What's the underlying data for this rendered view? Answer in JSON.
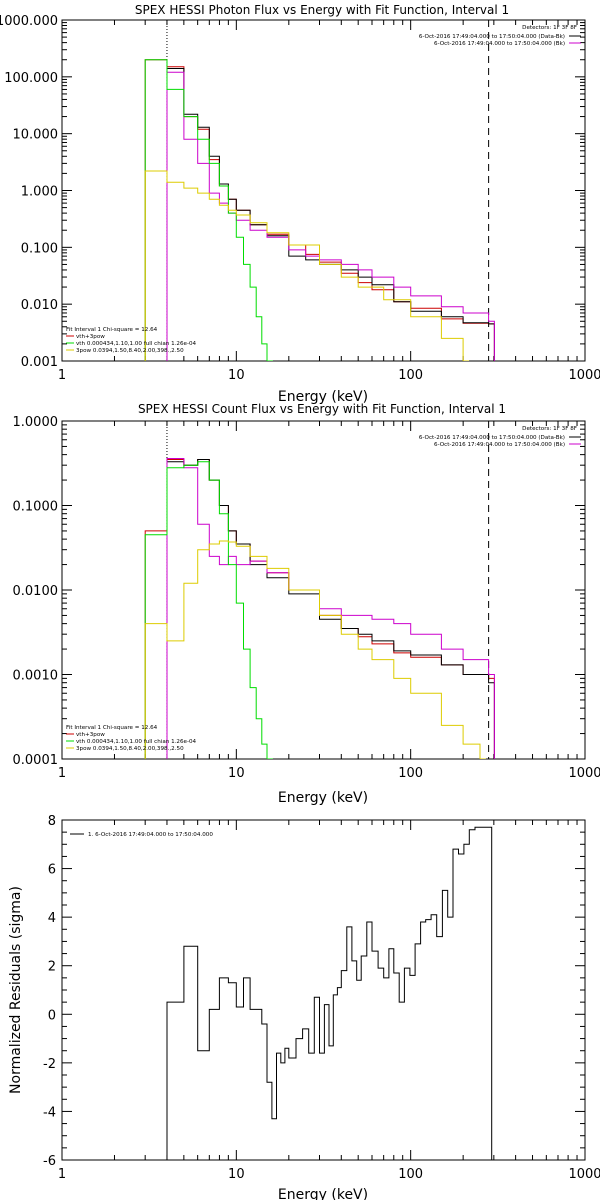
{
  "chart_data": [
    {
      "type": "line",
      "title": "SPEX HESSI Photon Flux vs Energy with Fit Function, Interval 1",
      "xlabel": "Energy (keV)",
      "ylabel": "",
      "x_scale": "log",
      "y_scale": "log",
      "xlim": [
        1,
        1000
      ],
      "ylim": [
        0.001,
        1000
      ],
      "x_tick_labels": [
        "1",
        "10",
        "100",
        "1000"
      ],
      "y_tick_labels": [
        "0.001",
        "0.010",
        "0.100",
        "1.000",
        "10.000",
        "100.000",
        "1000.000"
      ],
      "detectors_label": "Detectors: 1F 3F 8F",
      "legend_right": [
        "6-Oct-2016 17:49:04.000 to 17:50:04.000 (Data-Bk)",
        "6-Oct-2016 17:49:04.000 to 17:50:04.000 (Bk)"
      ],
      "legend_left": [
        "Fit Interval 1   Chi-square = 12.64",
        "vth+3pow",
        "vth 0.000434,1.10,1.00   full chian 1.26e-04",
        "3pow 0.0394,1.50,8.40,2.00,398.,2.50"
      ],
      "vlines": [
        {
          "x": 4.0,
          "style": "dotted"
        },
        {
          "x": 280,
          "style": "dashed"
        }
      ],
      "series": [
        {
          "name": "vth+3pow",
          "color": "#cc0000",
          "x": [
            3,
            4,
            5,
            6,
            7,
            8,
            9,
            10,
            12,
            15,
            20,
            25,
            30,
            40,
            50,
            60,
            80,
            100,
            150,
            200,
            280
          ],
          "values": [
            200,
            150,
            20,
            12,
            3.5,
            1.2,
            0.7,
            0.45,
            0.25,
            0.17,
            0.11,
            0.075,
            0.055,
            0.035,
            0.024,
            0.018,
            0.011,
            0.0085,
            0.0055,
            0.0046,
            0.0045
          ]
        },
        {
          "name": "",
          "color": "#000000",
          "x": [
            4,
            5,
            6,
            7,
            8,
            9,
            10,
            12,
            15,
            20,
            25,
            30,
            40,
            50,
            60,
            80,
            100,
            150,
            200,
            280
          ],
          "values": [
            140,
            22,
            13,
            4,
            1.3,
            0.7,
            0.45,
            0.25,
            0.16,
            0.07,
            0.06,
            0.05,
            0.04,
            0.03,
            0.022,
            0.011,
            0.0075,
            0.006,
            0.0047,
            0.0045
          ]
        },
        {
          "name": "",
          "color": "#cc00cc",
          "x": [
            4,
            5,
            6,
            7,
            8,
            9,
            10,
            12,
            15,
            20,
            25,
            30,
            40,
            50,
            60,
            80,
            100,
            150,
            200,
            280
          ],
          "values": [
            120,
            8,
            3,
            0.9,
            0.6,
            0.4,
            0.3,
            0.2,
            0.15,
            0.09,
            0.07,
            0.06,
            0.05,
            0.04,
            0.03,
            0.02,
            0.014,
            0.009,
            0.007,
            0.005
          ]
        },
        {
          "name": "vth",
          "color": "#00dd00",
          "x": [
            3,
            4,
            5,
            6,
            7,
            8,
            9,
            10,
            11,
            12,
            13,
            14,
            15
          ],
          "values": [
            200,
            60,
            20,
            8,
            3,
            1.2,
            0.4,
            0.15,
            0.05,
            0.02,
            0.006,
            0.002,
            0.001
          ]
        },
        {
          "name": "3pow",
          "color": "#ddcc00",
          "x": [
            3,
            4,
            5,
            6,
            7,
            8,
            9,
            10,
            12,
            15,
            20,
            30,
            40,
            50,
            70,
            100,
            150,
            200
          ],
          "values": [
            2.2,
            1.4,
            1.1,
            0.9,
            0.7,
            0.55,
            0.45,
            0.37,
            0.27,
            0.18,
            0.11,
            0.05,
            0.03,
            0.02,
            0.012,
            0.006,
            0.0025,
            0.001
          ]
        }
      ]
    },
    {
      "type": "line",
      "title": "SPEX HESSI Count Flux vs Energy with Fit Function, Interval 1",
      "xlabel": "Energy (keV)",
      "ylabel": "",
      "x_scale": "log",
      "y_scale": "log",
      "xlim": [
        1,
        1000
      ],
      "ylim": [
        0.0001,
        1
      ],
      "x_tick_labels": [
        "1",
        "10",
        "100",
        "1000"
      ],
      "y_tick_labels": [
        "0.0001",
        "0.0010",
        "0.0100",
        "0.1000",
        "1.0000"
      ],
      "detectors_label": "Detectors: 1F 3F 8F",
      "legend_right": [
        "6-Oct-2016 17:49:04.000 to 17:50:04.000 (Data-Bk)",
        "6-Oct-2016 17:49:04.000 to 17:50:04.000 (Bk)"
      ],
      "legend_left": [
        "Fit Interval 1   Chi-square = 12.64",
        "vth+3pow",
        "vth 0.000434,1.10,1.00   full chian 1.26e-04",
        "3pow 0.0394,1.50,8.40,2.00,398.,2.50"
      ],
      "vlines": [
        {
          "x": 4.0,
          "style": "dotted"
        },
        {
          "x": 280,
          "style": "dashed"
        }
      ],
      "series": [
        {
          "name": "vth+3pow",
          "color": "#cc0000",
          "x": [
            3,
            4,
            5,
            6,
            7,
            8,
            9,
            10,
            12,
            15,
            20,
            30,
            40,
            50,
            60,
            80,
            100,
            150,
            200,
            280
          ],
          "values": [
            0.05,
            0.35,
            0.3,
            0.35,
            0.2,
            0.1,
            0.05,
            0.035,
            0.022,
            0.016,
            0.01,
            0.005,
            0.0035,
            0.0028,
            0.0023,
            0.0018,
            0.0016,
            0.0013,
            0.001,
            0.0009
          ]
        },
        {
          "name": "",
          "color": "#000000",
          "x": [
            4,
            5,
            6,
            7,
            8,
            9,
            10,
            12,
            15,
            20,
            30,
            40,
            50,
            60,
            80,
            100,
            150,
            200,
            280
          ],
          "values": [
            0.33,
            0.3,
            0.35,
            0.2,
            0.1,
            0.05,
            0.035,
            0.02,
            0.014,
            0.009,
            0.0045,
            0.0035,
            0.003,
            0.0025,
            0.0019,
            0.0017,
            0.0013,
            0.001,
            0.0008
          ]
        },
        {
          "name": "",
          "color": "#cc00cc",
          "x": [
            4,
            5,
            6,
            7,
            8,
            9,
            10,
            12,
            15,
            20,
            30,
            40,
            50,
            60,
            80,
            100,
            150,
            200,
            280
          ],
          "values": [
            0.36,
            0.28,
            0.06,
            0.025,
            0.02,
            0.025,
            0.02,
            0.022,
            0.016,
            0.01,
            0.006,
            0.005,
            0.005,
            0.0045,
            0.004,
            0.003,
            0.002,
            0.0015,
            0.001
          ]
        },
        {
          "name": "vth",
          "color": "#00dd00",
          "x": [
            3,
            4,
            5,
            6,
            7,
            8,
            9,
            10,
            11,
            12,
            13,
            14,
            15
          ],
          "values": [
            0.045,
            0.28,
            0.3,
            0.33,
            0.2,
            0.08,
            0.02,
            0.007,
            0.002,
            0.0007,
            0.0003,
            0.00015,
            0.0001
          ]
        },
        {
          "name": "3pow",
          "color": "#ddcc00",
          "x": [
            3,
            4,
            5,
            6,
            7,
            8,
            9,
            10,
            12,
            15,
            20,
            30,
            40,
            50,
            60,
            80,
            100,
            150,
            200,
            250
          ],
          "values": [
            0.004,
            0.0025,
            0.012,
            0.03,
            0.035,
            0.038,
            0.037,
            0.033,
            0.025,
            0.018,
            0.01,
            0.005,
            0.003,
            0.002,
            0.0015,
            0.0009,
            0.0006,
            0.00025,
            0.00015,
            0.0001
          ]
        }
      ]
    },
    {
      "type": "line",
      "title": "",
      "xlabel": "Energy (keV)",
      "ylabel": "Normalized Residuals (sigma)",
      "x_scale": "log",
      "y_scale": "linear",
      "xlim": [
        1,
        1000
      ],
      "ylim": [
        -6,
        8
      ],
      "x_tick_labels": [
        "1",
        "10",
        "100",
        "1000"
      ],
      "y_tick_labels": [
        "-6",
        "-4",
        "-2",
        "0",
        "2",
        "4",
        "6",
        "8"
      ],
      "legend": [
        "1.  6-Oct-2016 17:49:04.000 to 17:50:04.000"
      ],
      "series": [
        {
          "name": "1.  6-Oct-2016 17:49:04.000 to 17:50:04.000",
          "color": "#000000",
          "x": [
            4,
            5,
            6,
            7,
            8,
            9,
            10,
            11,
            12,
            13,
            14,
            15,
            16,
            17,
            18,
            19,
            20,
            22,
            24,
            26,
            28,
            30,
            32,
            34,
            36,
            38,
            40,
            43,
            46,
            49,
            52,
            56,
            60,
            65,
            70,
            75,
            80,
            86,
            92,
            99,
            106,
            114,
            122,
            131,
            141,
            152,
            163,
            175,
            188,
            202,
            217,
            234,
            251,
            270
          ],
          "values": [
            0.5,
            2.8,
            -1.5,
            0.2,
            1.5,
            1.3,
            0.3,
            1.5,
            0.2,
            0.2,
            -0.4,
            -2.8,
            -4.3,
            -1.6,
            -2.0,
            -1.4,
            -1.8,
            -1.0,
            -0.6,
            -1.6,
            0.7,
            -1.6,
            0.4,
            -1.3,
            0.8,
            1.1,
            1.8,
            3.6,
            2.2,
            1.4,
            2.4,
            3.8,
            2.6,
            1.9,
            1.5,
            2.7,
            1.7,
            0.5,
            1.9,
            1.6,
            2.9,
            3.8,
            3.9,
            4.1,
            3.2,
            5.1,
            4.0,
            6.8,
            6.6,
            7.0,
            7.6,
            7.7,
            7.7,
            7.7
          ]
        }
      ]
    }
  ]
}
